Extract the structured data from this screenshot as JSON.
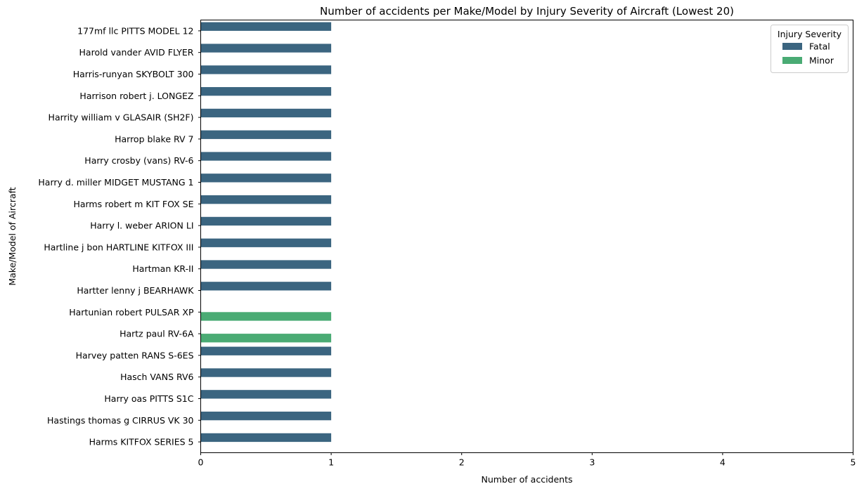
{
  "chart_data": {
    "type": "bar",
    "orientation": "horizontal",
    "title": "Number of accidents per Make/Model by Injury Severity of Aircraft (Lowest 20)",
    "xlabel": "Number of accidents",
    "ylabel": "Make/Model of Aircraft",
    "xlim": [
      0,
      5
    ],
    "xticks": [
      0,
      1,
      2,
      3,
      4,
      5
    ],
    "grid": false,
    "legend": {
      "title": "Injury Severity",
      "placement": "top-right"
    },
    "categories": [
      "177mf llc PITTS MODEL 12",
      "Harold vander AVID FLYER",
      "Harris-runyan SKYBOLT 300",
      "Harrison robert j. LONGEZ",
      "Harrity william v GLASAIR (SH2F)",
      "Harrop blake RV 7",
      "Harry crosby (vans) RV-6",
      "Harry d. miller MIDGET MUSTANG 1",
      "Harms robert m KIT FOX SE",
      "Harry l. weber ARION LI",
      "Hartline j bon HARTLINE KITFOX III",
      "Hartman KR-II",
      "Hartter lenny j BEARHAWK",
      "Hartunian robert PULSAR XP",
      "Hartz paul RV-6A",
      "Harvey patten RANS S-6ES",
      "Hasch VANS RV6",
      "Harry oas PITTS S1C",
      "Hastings thomas g CIRRUS VK 30",
      "Harms KITFOX SERIES 5"
    ],
    "series": [
      {
        "name": "Fatal",
        "color": "#3b6580",
        "values": [
          1,
          1,
          1,
          1,
          1,
          1,
          1,
          1,
          1,
          1,
          1,
          1,
          1,
          null,
          null,
          1,
          1,
          1,
          1,
          1
        ]
      },
      {
        "name": "Minor",
        "color": "#4aab74",
        "values": [
          null,
          null,
          null,
          null,
          null,
          null,
          null,
          null,
          null,
          null,
          null,
          null,
          null,
          1,
          1,
          null,
          null,
          null,
          null,
          null
        ]
      }
    ]
  }
}
